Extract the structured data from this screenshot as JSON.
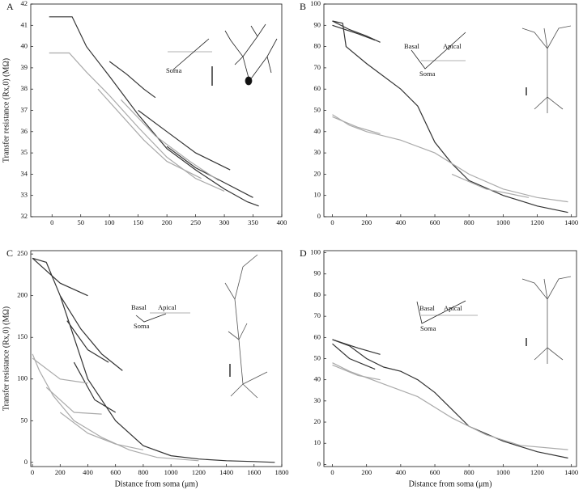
{
  "chart_data": [
    {
      "type": "line",
      "label": "A",
      "ylabel": "Transfer resistance (Rx,0) (MΩ)",
      "xlim": [
        -37,
        400
      ],
      "xticks": [
        0,
        50,
        100,
        150,
        200,
        250,
        300,
        350,
        400
      ],
      "ylim": [
        32,
        42
      ],
      "yticks": [
        32,
        33,
        34,
        35,
        36,
        37,
        38,
        39,
        40,
        41,
        42
      ],
      "annotations": [
        "Soma"
      ],
      "series": [
        {
          "color": "#333333",
          "x": [
            -5,
            35,
            60,
            100,
            150,
            200,
            250,
            300,
            340,
            360
          ],
          "values": [
            41.4,
            41.4,
            40,
            38.6,
            36.8,
            35.2,
            34.2,
            33.3,
            32.7,
            32.5
          ]
        },
        {
          "color": "#333333",
          "x": [
            100,
            130,
            160,
            180
          ],
          "values": [
            39.3,
            38.7,
            38,
            37.6
          ]
        },
        {
          "color": "#333333",
          "x": [
            150,
            200,
            250,
            310
          ],
          "values": [
            37,
            36,
            35,
            34.2
          ]
        },
        {
          "color": "#333333",
          "x": [
            200,
            250,
            300,
            350
          ],
          "values": [
            35.3,
            34.3,
            33.6,
            32.9
          ]
        },
        {
          "color": "#aaaaaa",
          "x": [
            -5,
            30,
            60,
            100,
            150,
            200,
            250,
            300
          ],
          "values": [
            39.7,
            39.7,
            38.8,
            37.7,
            36.2,
            34.8,
            33.8,
            33.2
          ]
        },
        {
          "color": "#aaaaaa",
          "x": [
            80,
            120,
            160,
            200,
            260
          ],
          "values": [
            38,
            36.8,
            35.6,
            34.6,
            33.8
          ]
        },
        {
          "color": "#aaaaaa",
          "x": [
            120,
            180,
            240,
            290
          ],
          "values": [
            37.5,
            35.8,
            34.6,
            33.7
          ]
        }
      ]
    },
    {
      "type": "line",
      "label": "B",
      "xlim": [
        -50,
        1430
      ],
      "xticks": [
        0,
        200,
        400,
        600,
        800,
        1000,
        1200,
        1400
      ],
      "ylim": [
        0,
        100
      ],
      "yticks": [
        0,
        10,
        20,
        30,
        40,
        50,
        60,
        70,
        80,
        90,
        100
      ],
      "annotations": [
        "Basal",
        "Apical",
        "Soma"
      ],
      "series": [
        {
          "color": "#333333",
          "x": [
            0,
            60,
            80,
            200,
            400,
            500,
            600,
            700,
            800,
            1000,
            1200,
            1380
          ],
          "values": [
            92,
            91,
            80,
            72,
            60,
            52,
            35,
            25,
            17,
            10,
            5,
            2
          ]
        },
        {
          "color": "#333333",
          "x": [
            0,
            100,
            200,
            280
          ],
          "values": [
            92,
            88,
            85,
            82
          ]
        },
        {
          "color": "#333333",
          "x": [
            0,
            150,
            250
          ],
          "values": [
            90,
            86,
            83
          ]
        },
        {
          "color": "#aaaaaa",
          "x": [
            0,
            100,
            200,
            400,
            600,
            800,
            1000,
            1200,
            1380
          ],
          "values": [
            48,
            43,
            40,
            36,
            30,
            20,
            13,
            9,
            7
          ]
        },
        {
          "color": "#aaaaaa",
          "x": [
            0,
            150,
            280
          ],
          "values": [
            47,
            42,
            39
          ]
        },
        {
          "color": "#aaaaaa",
          "x": [
            700,
            900,
            1150
          ],
          "values": [
            20,
            13,
            9
          ]
        }
      ]
    },
    {
      "type": "line",
      "label": "C",
      "ylabel": "Transfer resistance (Rx,0) (MΩ)",
      "xlabel": "Distance from soma (μm)",
      "xlim": [
        -12,
        1800
      ],
      "xticks": [
        0,
        200,
        400,
        600,
        800,
        1000,
        1200,
        1400,
        1600,
        1800
      ],
      "ylim": [
        -5,
        254
      ],
      "yticks": [
        0,
        50,
        100,
        150,
        200,
        250
      ],
      "annotations": [
        "Basal",
        "Apical",
        "Soma"
      ],
      "series": [
        {
          "color": "#333333",
          "x": [
            0,
            100,
            200,
            300,
            400,
            600,
            800,
            1000,
            1200,
            1400,
            1600,
            1750
          ],
          "values": [
            245,
            240,
            200,
            150,
            100,
            50,
            20,
            8,
            4,
            2,
            1,
            0
          ]
        },
        {
          "color": "#333333",
          "x": [
            0,
            200,
            400
          ],
          "values": [
            245,
            215,
            200
          ]
        },
        {
          "color": "#333333",
          "x": [
            200,
            350,
            500,
            650
          ],
          "values": [
            200,
            160,
            130,
            110
          ]
        },
        {
          "color": "#333333",
          "x": [
            300,
            450,
            600
          ],
          "values": [
            120,
            75,
            60
          ]
        },
        {
          "color": "#333333",
          "x": [
            250,
            400,
            550
          ],
          "values": [
            170,
            135,
            120
          ]
        },
        {
          "color": "#aaaaaa",
          "x": [
            0,
            50,
            150,
            300,
            500,
            700,
            900,
            1200
          ],
          "values": [
            130,
            110,
            80,
            50,
            30,
            15,
            6,
            2
          ]
        },
        {
          "color": "#aaaaaa",
          "x": [
            0,
            200,
            400
          ],
          "values": [
            125,
            100,
            95
          ]
        },
        {
          "color": "#aaaaaa",
          "x": [
            100,
            300,
            500
          ],
          "values": [
            90,
            60,
            58
          ]
        },
        {
          "color": "#aaaaaa",
          "x": [
            200,
            400,
            600,
            800
          ],
          "values": [
            60,
            35,
            22,
            15
          ]
        }
      ]
    },
    {
      "type": "line",
      "label": "D",
      "xlabel": "Distance from soma (μm)",
      "xlim": [
        -50,
        1430
      ],
      "xticks": [
        0,
        200,
        400,
        600,
        800,
        1000,
        1200,
        1400
      ],
      "ylim": [
        -1,
        101
      ],
      "yticks": [
        0,
        10,
        20,
        30,
        40,
        50,
        60,
        70,
        80,
        90,
        100
      ],
      "annotations": [
        "Basal",
        "Apical",
        "Soma"
      ],
      "series": [
        {
          "color": "#333333",
          "x": [
            0,
            100,
            200,
            300,
            400,
            500,
            600,
            700,
            800,
            1000,
            1200,
            1380
          ],
          "values": [
            59,
            56,
            50,
            46,
            44,
            40,
            34,
            26,
            18,
            11,
            6,
            3
          ]
        },
        {
          "color": "#333333",
          "x": [
            0,
            150,
            280
          ],
          "values": [
            59,
            55,
            52
          ]
        },
        {
          "color": "#333333",
          "x": [
            0,
            100,
            250
          ],
          "values": [
            57,
            50,
            45
          ]
        },
        {
          "color": "#aaaaaa",
          "x": [
            0,
            100,
            300,
            500,
            700,
            900,
            1100,
            1380
          ],
          "values": [
            48,
            44,
            38,
            32,
            22,
            14,
            9,
            7
          ]
        },
        {
          "color": "#aaaaaa",
          "x": [
            0,
            150,
            280
          ],
          "values": [
            47,
            42,
            40
          ]
        }
      ]
    }
  ]
}
